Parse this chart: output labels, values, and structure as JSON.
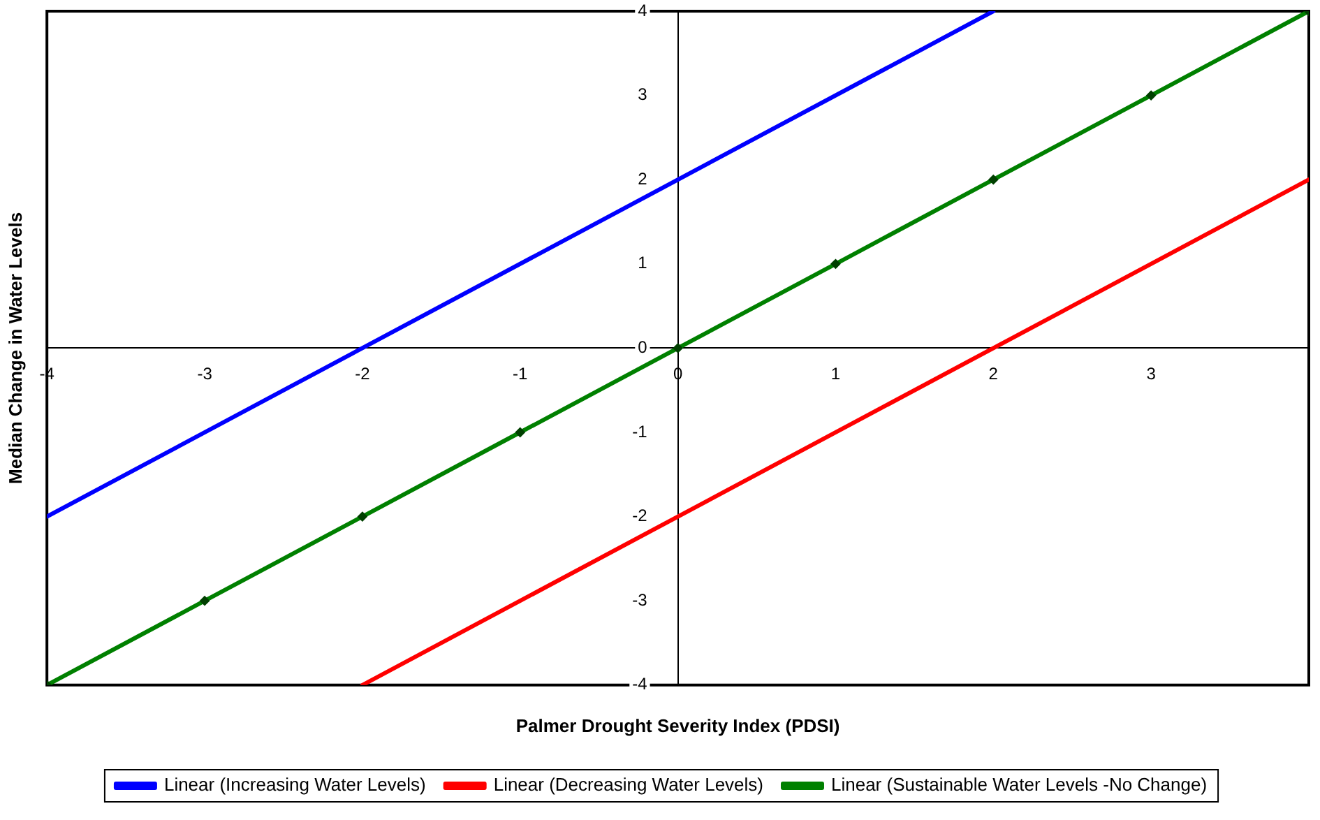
{
  "chart_data": {
    "type": "line",
    "xlabel": "Palmer Drought Severity Index (PDSI)",
    "ylabel": "Median Change in Water Levels",
    "xlim": [
      -4,
      4
    ],
    "ylim": [
      -4,
      4
    ],
    "xticks": [
      -4,
      -3,
      -2,
      -1,
      0,
      1,
      2,
      3,
      {
        "value": 4,
        "label": null
      }
    ],
    "yticks": [
      -4,
      -3,
      -2,
      -1,
      0,
      1,
      2,
      3,
      4
    ],
    "legend": "bottom",
    "series": [
      {
        "name": "Linear (Increasing Water Levels)",
        "color": "#0000ff",
        "x": [
          -4,
          2
        ],
        "values": [
          -2,
          4
        ],
        "marker": "none"
      },
      {
        "name": "Linear (Decreasing Water Levels)",
        "color": "#ff0000",
        "x": [
          -2,
          4
        ],
        "values": [
          -4,
          2
        ],
        "marker": "none"
      },
      {
        "name": "Linear (Sustainable Water Levels -No Change)",
        "color": "#008000",
        "x": [
          -4,
          -3,
          -2,
          -1,
          0,
          1,
          2,
          3,
          4
        ],
        "values": [
          -4,
          -3,
          -2,
          -1,
          0,
          1,
          2,
          3,
          4
        ],
        "marker": "diamond"
      }
    ]
  }
}
